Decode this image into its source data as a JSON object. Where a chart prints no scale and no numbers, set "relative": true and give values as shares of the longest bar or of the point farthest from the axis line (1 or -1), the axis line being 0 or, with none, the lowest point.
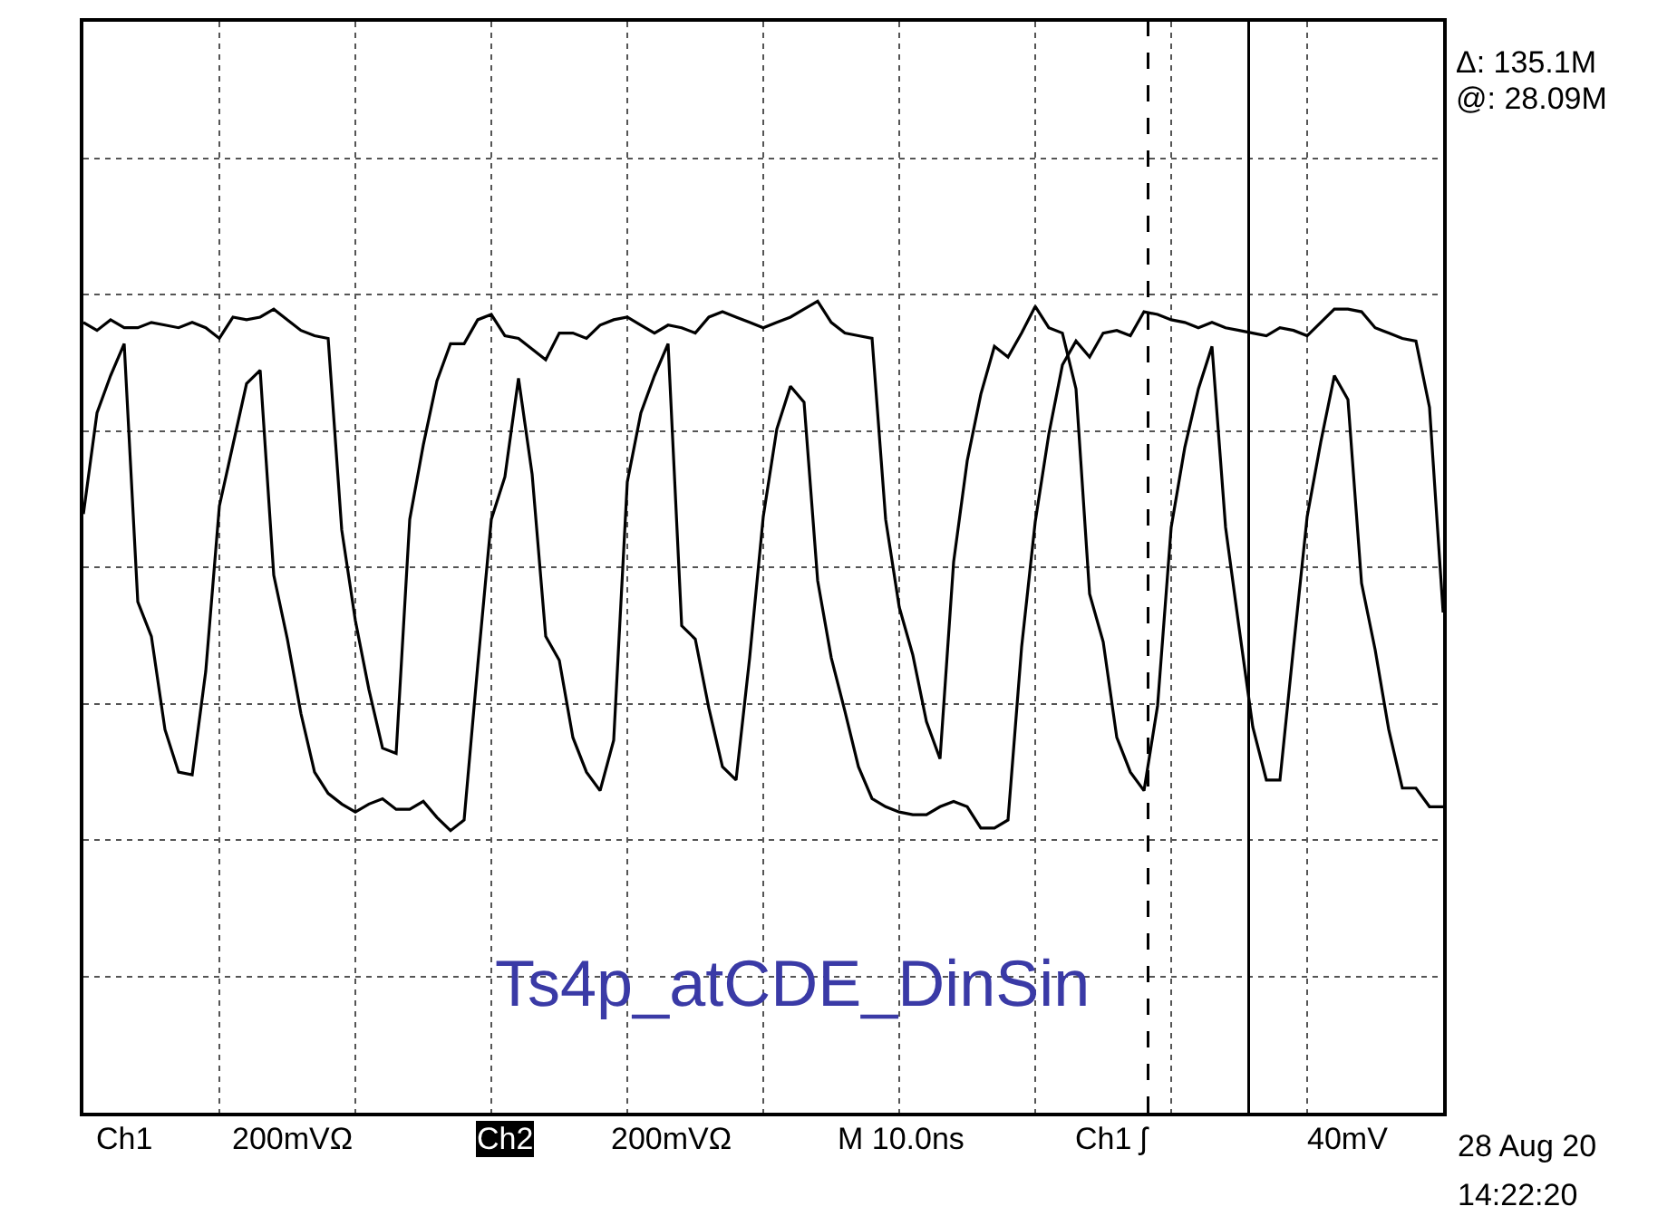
{
  "chart_data": {
    "type": "line",
    "relative": true,
    "categories": [
      null,
      null,
      null,
      null,
      null,
      null,
      null,
      null,
      null,
      null,
      null,
      null,
      null,
      null,
      null,
      null,
      null,
      null,
      null,
      null,
      null,
      null,
      null,
      null,
      null,
      null,
      null,
      null,
      null,
      null,
      null,
      null,
      null,
      null,
      null,
      null,
      null,
      null,
      null,
      null,
      null,
      null,
      null,
      null,
      null,
      null,
      null,
      null,
      null,
      null,
      null,
      null,
      null,
      null,
      null,
      null,
      null,
      null,
      null,
      null,
      null,
      null,
      null,
      null,
      null,
      null,
      null,
      null,
      null,
      null,
      null,
      null,
      null,
      null,
      null,
      null,
      null,
      null,
      null,
      null,
      null,
      null,
      null,
      null,
      null,
      null,
      null,
      null,
      null,
      null,
      null,
      null,
      null,
      null,
      null,
      null,
      null,
      null,
      null,
      null,
      null
    ],
    "grid": true,
    "marker": "none",
    "line_style": "solid",
    "series": [
      {
        "color": "#000000",
        "values": [
          0.92,
          0.89,
          0.93,
          0.9,
          0.9,
          0.92,
          0.91,
          0.9,
          0.92,
          0.9,
          0.86,
          0.94,
          0.93,
          0.94,
          0.97,
          0.93,
          0.89,
          0.87,
          0.86,
          0.14,
          -0.2,
          -0.46,
          -0.68,
          -0.7,
          0.18,
          0.46,
          0.7,
          0.84,
          0.84,
          0.93,
          0.95,
          0.87,
          0.86,
          0.82,
          0.78,
          0.88,
          0.88,
          0.86,
          0.91,
          0.93,
          0.94,
          0.91,
          0.88,
          0.91,
          0.9,
          0.88,
          0.94,
          0.96,
          0.94,
          0.92,
          0.9,
          0.92,
          0.94,
          0.97,
          1.0,
          0.92,
          0.88,
          0.87,
          0.86,
          0.18,
          -0.15,
          -0.33,
          -0.58,
          -0.72,
          0.02,
          0.4,
          0.65,
          0.83,
          0.79,
          0.88,
          0.98,
          0.9,
          0.88,
          0.67,
          -0.1,
          -0.28,
          -0.64,
          -0.77,
          -0.84,
          -0.52,
          0.15,
          0.45,
          0.67,
          0.83,
          0.15,
          -0.23,
          -0.6,
          -0.8,
          -0.8,
          -0.3,
          0.19,
          0.47,
          0.72,
          0.63,
          -0.06,
          -0.31,
          -0.61,
          -0.83,
          -0.83,
          -0.9,
          -0.9
        ]
      },
      {
        "color": "#000000",
        "values": [
          0.2,
          0.58,
          0.72,
          0.84,
          -0.13,
          -0.26,
          -0.61,
          -0.77,
          -0.78,
          -0.39,
          0.23,
          0.46,
          0.69,
          0.74,
          -0.03,
          -0.27,
          -0.55,
          -0.77,
          -0.85,
          -0.89,
          -0.92,
          -0.89,
          -0.87,
          -0.91,
          -0.91,
          -0.88,
          -0.94,
          -0.99,
          -0.95,
          -0.37,
          0.18,
          0.34,
          0.71,
          0.35,
          -0.26,
          -0.35,
          -0.64,
          -0.77,
          -0.84,
          -0.65,
          0.32,
          0.58,
          0.72,
          0.84,
          -0.22,
          -0.27,
          -0.53,
          -0.75,
          -0.8,
          -0.34,
          0.19,
          0.52,
          0.68,
          0.62,
          -0.05,
          -0.34,
          -0.54,
          -0.75,
          -0.87,
          -0.9,
          -0.92,
          -0.93,
          -0.93,
          -0.9,
          -0.88,
          -0.9,
          -0.98,
          -0.98,
          -0.95,
          -0.3,
          0.17,
          0.5,
          0.76,
          0.85,
          0.79,
          0.88,
          0.89,
          0.87,
          0.96,
          0.95,
          0.93,
          0.92,
          0.9,
          0.92,
          0.9,
          0.89,
          0.88,
          0.87,
          0.9,
          0.89,
          0.87,
          0.92,
          0.97,
          0.97,
          0.96,
          0.9,
          0.88,
          0.86,
          0.85,
          0.6,
          -0.17
        ]
      }
    ],
    "annotations": [
      "Δ: 135.1M",
      "@: 28.09M",
      "Ch1",
      "200mVΩ",
      "Ch2",
      "200mVΩ",
      "M 10.0ns",
      "Ch1 ʃ",
      "40mV",
      "28 Aug 20",
      "14:22:20",
      "Ts4p_atCDE_DinSin"
    ]
  }
}
